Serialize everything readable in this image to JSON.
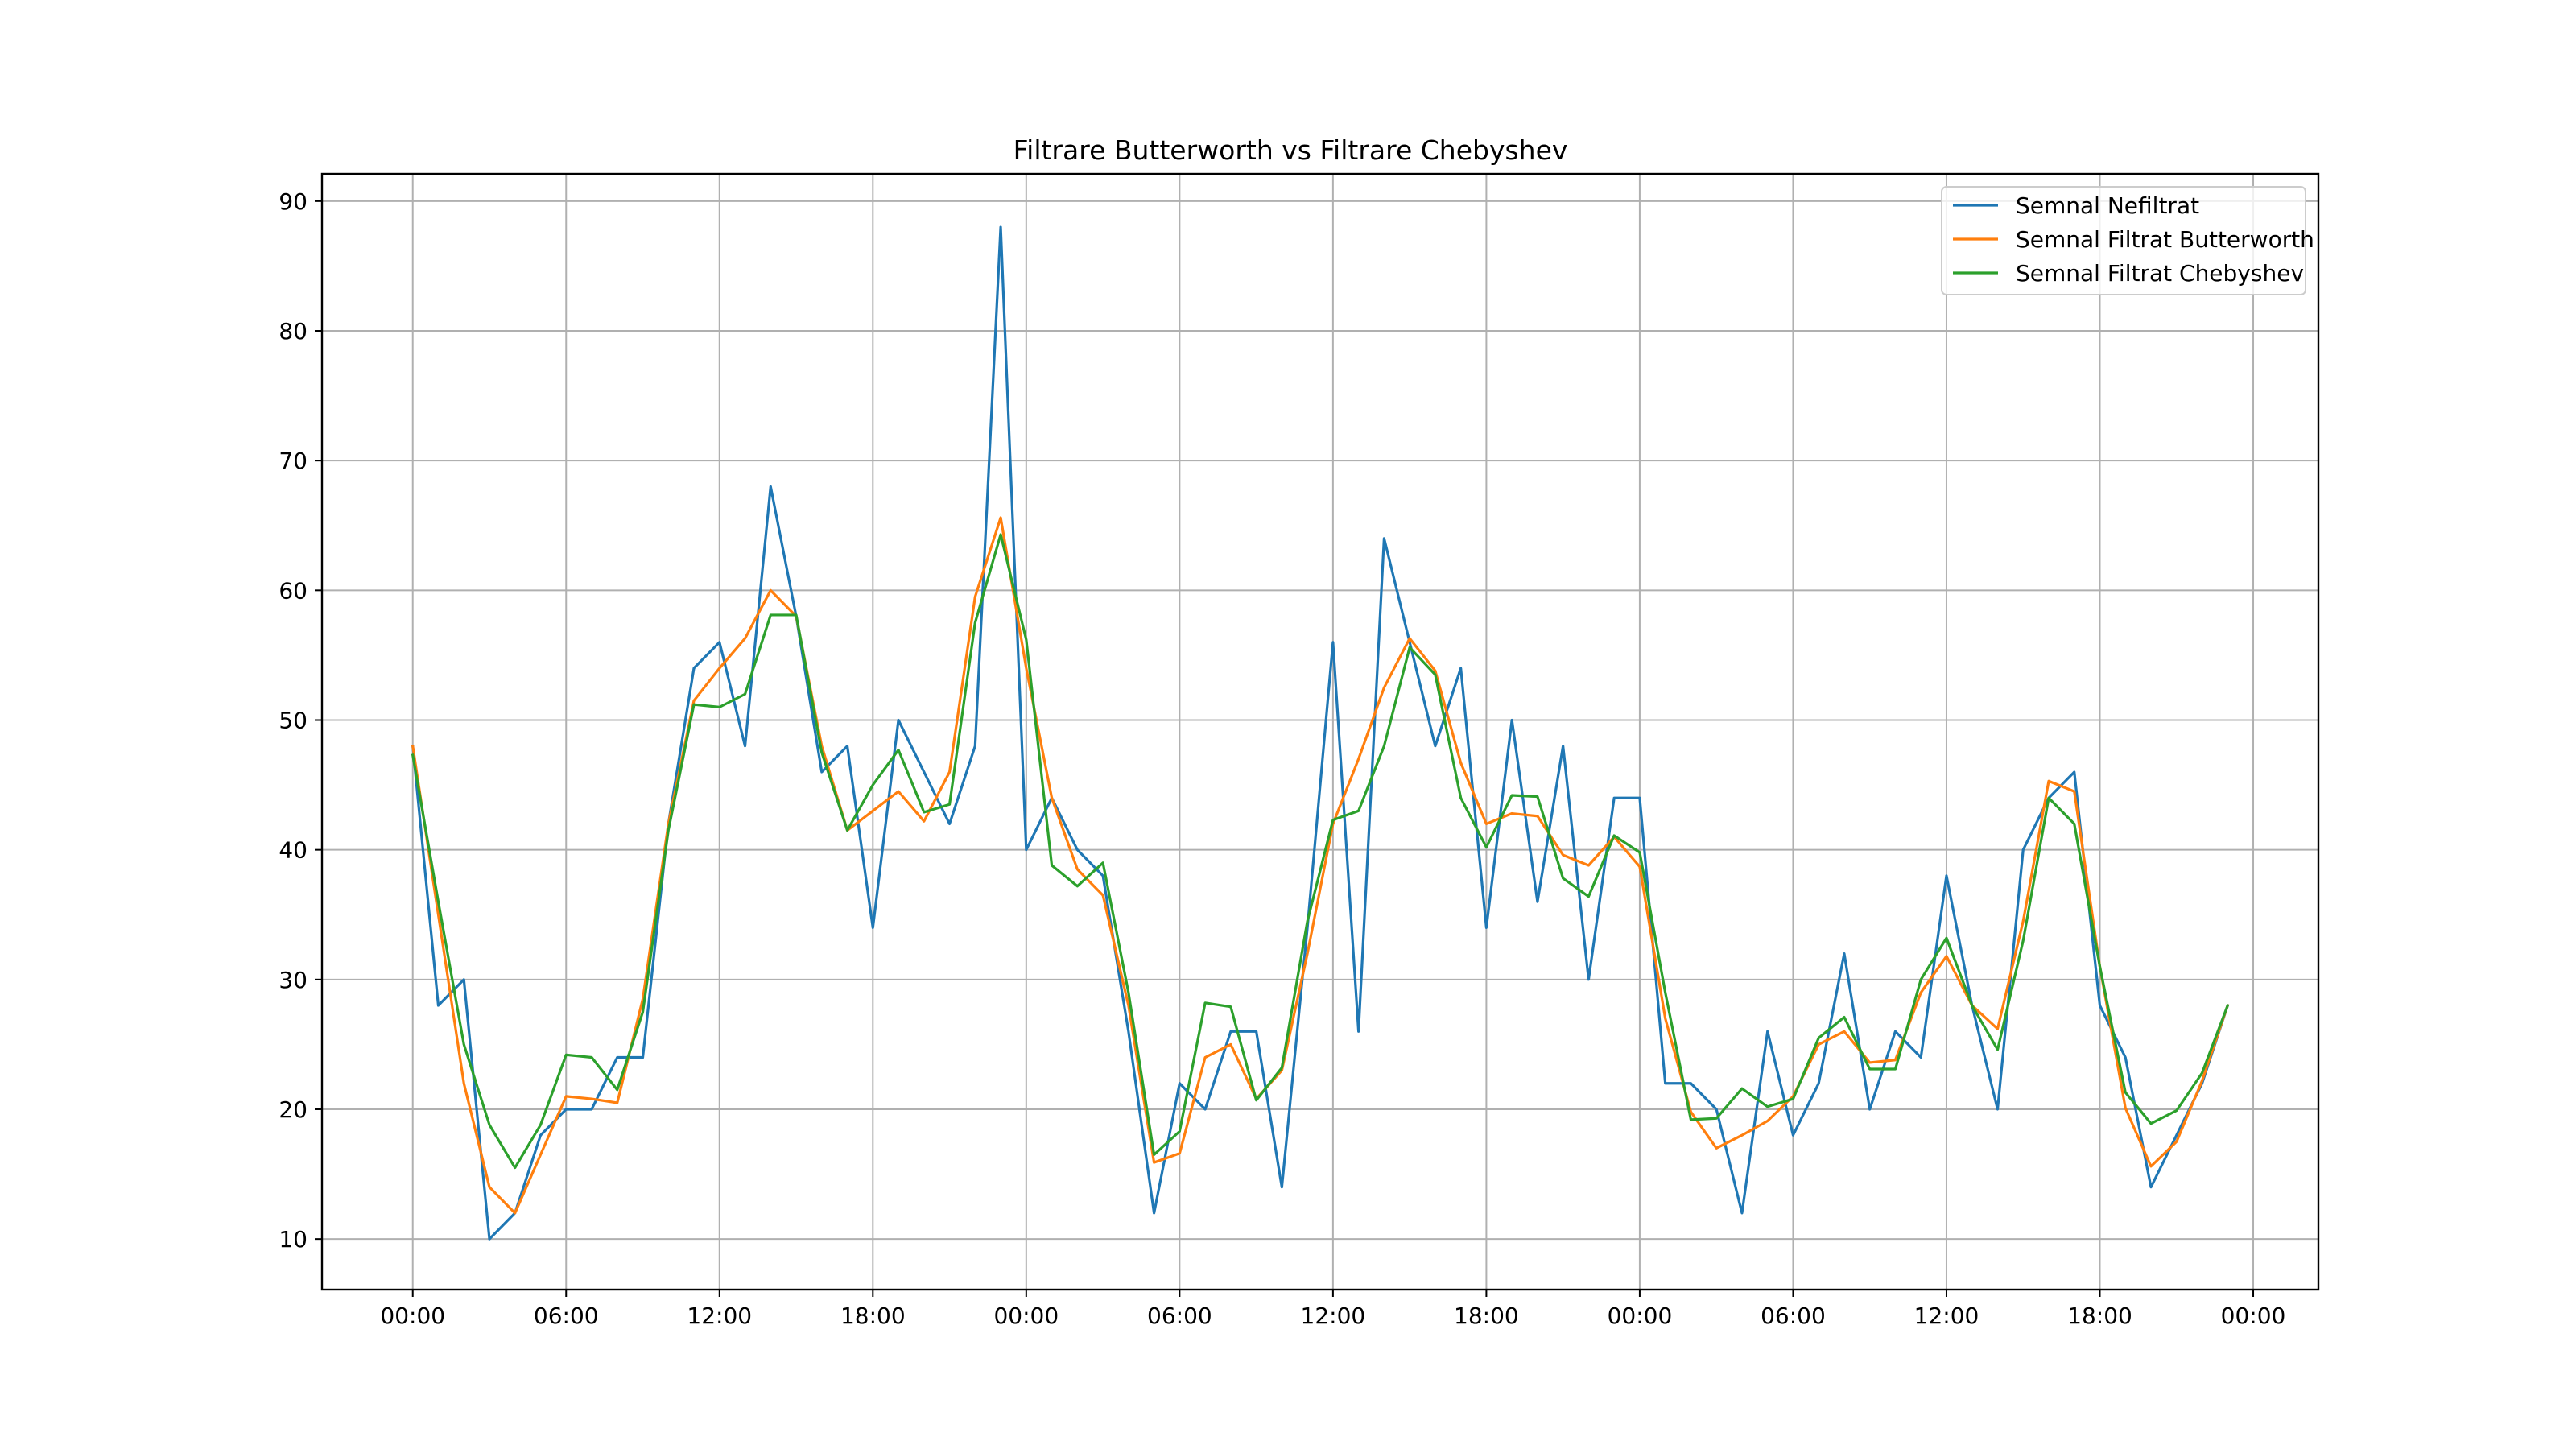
{
  "chart_data": {
    "type": "line",
    "title": "Filtrare Butterworth vs Filtrare Chebyshev",
    "xlabel": "",
    "ylabel": "",
    "x_unit": "hours",
    "x_start_hour": 0,
    "x_step_hours": 1,
    "x_ticks": [
      {
        "hour": 0,
        "label": "00:00"
      },
      {
        "hour": 6,
        "label": "06:00"
      },
      {
        "hour": 12,
        "label": "12:00"
      },
      {
        "hour": 18,
        "label": "18:00"
      },
      {
        "hour": 24,
        "label": "00:00"
      },
      {
        "hour": 30,
        "label": "06:00"
      },
      {
        "hour": 36,
        "label": "12:00"
      },
      {
        "hour": 42,
        "label": "18:00"
      },
      {
        "hour": 48,
        "label": "00:00"
      },
      {
        "hour": 54,
        "label": "06:00"
      },
      {
        "hour": 60,
        "label": "12:00"
      },
      {
        "hour": 66,
        "label": "18:00"
      },
      {
        "hour": 72,
        "label": "00:00"
      }
    ],
    "y_ticks": [
      10,
      20,
      30,
      40,
      50,
      60,
      70,
      80,
      90
    ],
    "xlim": [
      -3.55,
      74.55
    ],
    "ylim": [
      6.1,
      92.1
    ],
    "grid": true,
    "legend_position": "upper right",
    "series": [
      {
        "name": "Semnal Nefiltrat",
        "color": "#1f77b4",
        "values": [
          48,
          28,
          30,
          10,
          12,
          18,
          20,
          20,
          24,
          24,
          42,
          54,
          56,
          48,
          68,
          58,
          46,
          48,
          34,
          50,
          46,
          42,
          48,
          88,
          40,
          44,
          40,
          38,
          26,
          12,
          22,
          20,
          26,
          26,
          14,
          34,
          56,
          26,
          64,
          56,
          48,
          54,
          34,
          50,
          36,
          48,
          30,
          44,
          44,
          22,
          22,
          20,
          12,
          26,
          18,
          22,
          32,
          20,
          26,
          24,
          38,
          28,
          20,
          40,
          44,
          46,
          28,
          24,
          14,
          18,
          22,
          28
        ]
      },
      {
        "name": "Semnal Filtrat Butterworth",
        "color": "#ff7f0e",
        "values": [
          48,
          35,
          22,
          14,
          12,
          16.5,
          21,
          20.8,
          20.5,
          28.5,
          42,
          51.5,
          54,
          56.3,
          60,
          58,
          48,
          41.5,
          43,
          44.5,
          42.2,
          46,
          59.5,
          65.6,
          54,
          44,
          38.5,
          36.5,
          28,
          15.9,
          16.6,
          24,
          25,
          20.8,
          23,
          32,
          42,
          47,
          52.5,
          56.3,
          53.8,
          46.7,
          42,
          42.8,
          42.6,
          39.6,
          38.8,
          41,
          38.7,
          27,
          19.8,
          17,
          18,
          19.1,
          21,
          25,
          26,
          23.6,
          23.8,
          29,
          31.8,
          28,
          26.2,
          34.5,
          45.3,
          44.5,
          31,
          20.1,
          15.6,
          17.5,
          22.2,
          28
        ]
      },
      {
        "name": "Semnal Filtrat Chebyshev",
        "color": "#2ca02c",
        "values": [
          47.3,
          36,
          25,
          18.8,
          15.5,
          18.8,
          24.2,
          24,
          21.5,
          27.5,
          41.5,
          51.2,
          51,
          52,
          58.1,
          58.1,
          47.5,
          41.5,
          45,
          47.7,
          42.9,
          43.5,
          57.5,
          64.3,
          56.2,
          38.8,
          37.2,
          39,
          29,
          16.5,
          18.3,
          28.2,
          27.9,
          20.7,
          23.2,
          34.5,
          42.3,
          43,
          48,
          55.6,
          53.5,
          44,
          40.2,
          44.2,
          44.1,
          37.8,
          36.4,
          41.1,
          39.8,
          29,
          19.2,
          19.3,
          21.6,
          20.2,
          20.8,
          25.5,
          27.1,
          23.1,
          23.1,
          30,
          33.2,
          28,
          24.6,
          33,
          44,
          42,
          31,
          21.3,
          18.9,
          19.9,
          22.8,
          28
        ]
      }
    ]
  }
}
